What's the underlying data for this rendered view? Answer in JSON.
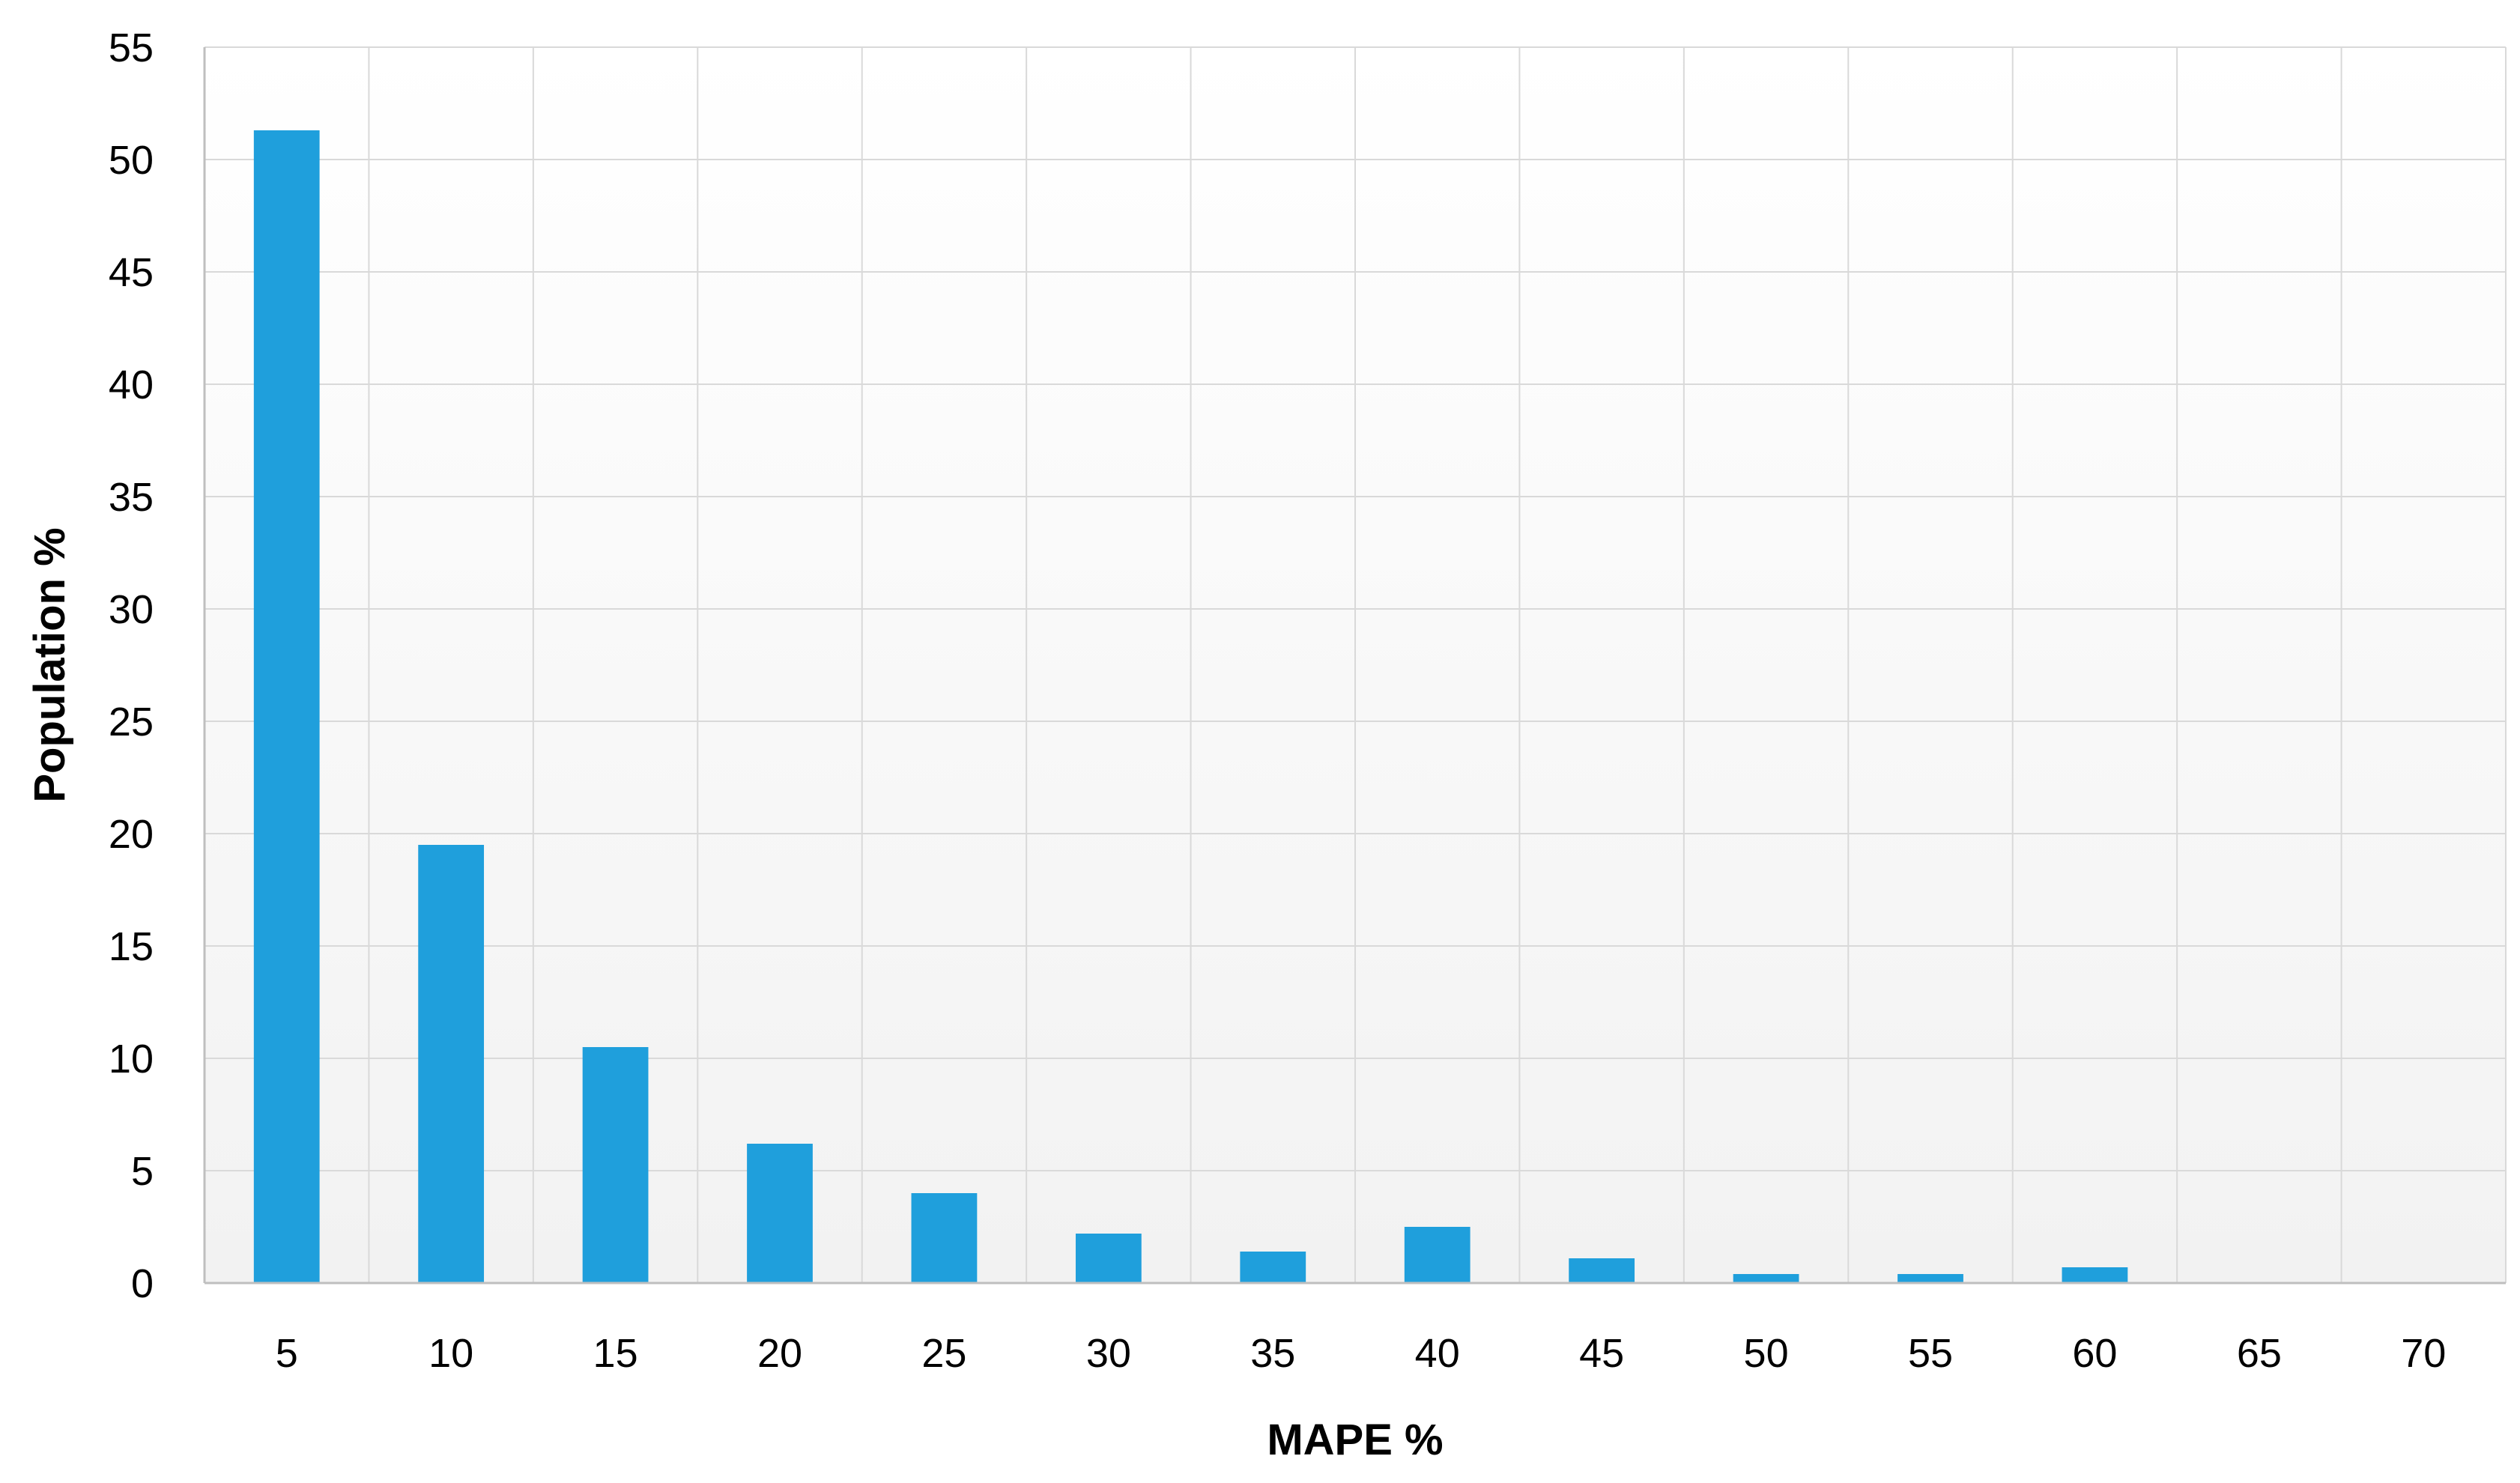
{
  "chart_data": {
    "type": "bar",
    "title": "",
    "xlabel": "MAPE %",
    "ylabel": "Population %",
    "categories": [
      "5",
      "10",
      "15",
      "20",
      "25",
      "30",
      "35",
      "40",
      "45",
      "50",
      "55",
      "60",
      "65",
      "70"
    ],
    "values": [
      51.3,
      19.5,
      10.5,
      6.2,
      4.0,
      2.2,
      1.4,
      2.5,
      1.1,
      0.4,
      0.4,
      0.7,
      0,
      0
    ],
    "ylim": [
      0,
      55
    ],
    "yticks": [
      0,
      5,
      10,
      15,
      20,
      25,
      30,
      35,
      40,
      45,
      50,
      55
    ],
    "grid": true,
    "legend": "none",
    "bar_color": "#1f9fdc",
    "grid_color": "#d9d9d9",
    "background_gradient": [
      "#ffffff",
      "#f2f2f2"
    ]
  }
}
